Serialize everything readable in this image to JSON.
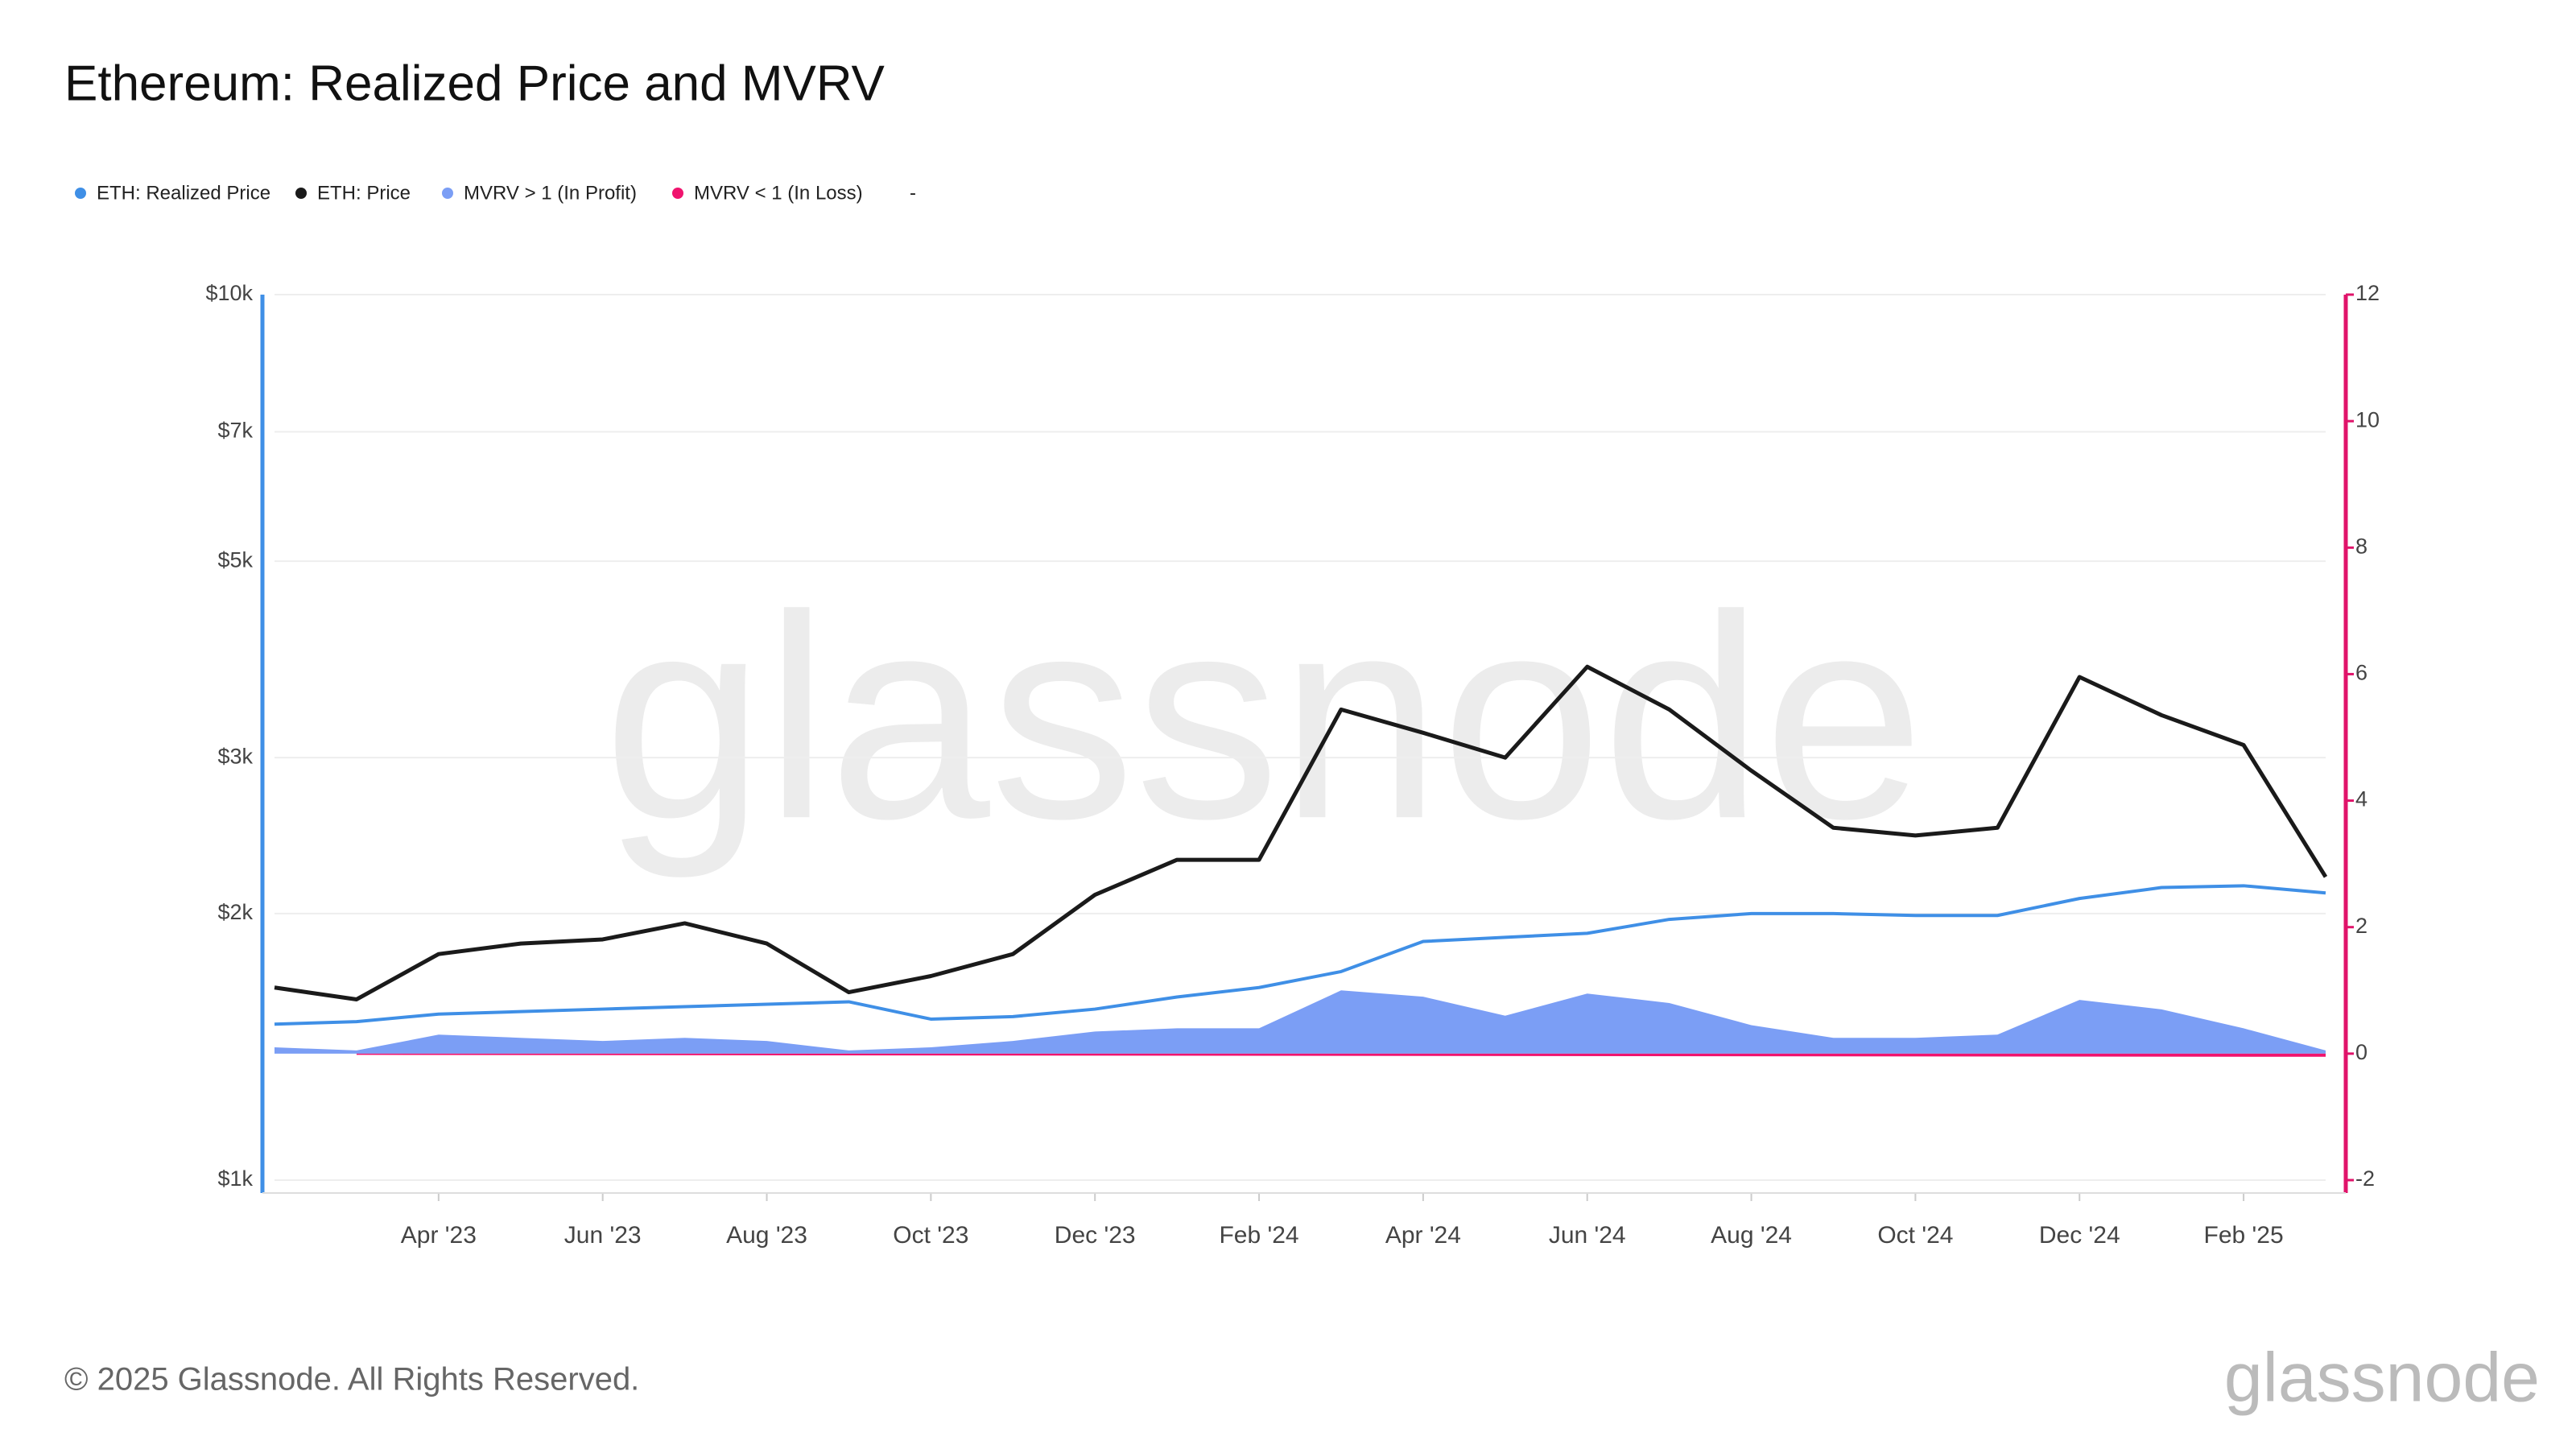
{
  "title": "Ethereum: Realized Price and MVRV",
  "chart_data": {
    "type": "line",
    "log_scale_y": true,
    "grid": true,
    "x": [
      "2023-02",
      "2023-03",
      "2023-04",
      "2023-05",
      "2023-06",
      "2023-07",
      "2023-08",
      "2023-09",
      "2023-10",
      "2023-11",
      "2023-12",
      "2024-01",
      "2024-02",
      "2024-03",
      "2024-04",
      "2024-05",
      "2024-06",
      "2024-07",
      "2024-08",
      "2024-09",
      "2024-10",
      "2024-11",
      "2024-12",
      "2025-01",
      "2025-02",
      "2025-03"
    ],
    "xlim": [
      "2023-02",
      "2025-03"
    ],
    "xticks": [
      {
        "value": "2023-04",
        "label": "Apr '23"
      },
      {
        "value": "2023-06",
        "label": "Jun '23"
      },
      {
        "value": "2023-08",
        "label": "Aug '23"
      },
      {
        "value": "2023-10",
        "label": "Oct '23"
      },
      {
        "value": "2023-12",
        "label": "Dec '23"
      },
      {
        "value": "2024-02",
        "label": "Feb '24"
      },
      {
        "value": "2024-04",
        "label": "Apr '24"
      },
      {
        "value": "2024-06",
        "label": "Jun '24"
      },
      {
        "value": "2024-08",
        "label": "Aug '24"
      },
      {
        "value": "2024-10",
        "label": "Oct '24"
      },
      {
        "value": "2024-12",
        "label": "Dec '24"
      },
      {
        "value": "2025-02",
        "label": "Feb '25"
      }
    ],
    "ylim": [
      1000,
      10000
    ],
    "yticks": [
      {
        "value": 1000,
        "label": "$1k"
      },
      {
        "value": 2000,
        "label": "$2k"
      },
      {
        "value": 3000,
        "label": "$3k"
      },
      {
        "value": 5000,
        "label": "$5k"
      },
      {
        "value": 7000,
        "label": "$7k"
      },
      {
        "value": 10000,
        "label": "$10k"
      }
    ],
    "y2lim": [
      -2,
      12
    ],
    "y2ticks": [
      -2,
      0,
      2,
      4,
      6,
      8,
      10,
      12
    ],
    "legend_extra_label": "-",
    "series": [
      {
        "name": "MVRV > 1 (In Profit)",
        "color": "#7b9ef5",
        "style": "area",
        "axis": "y2",
        "values": [
          0.1,
          0.05,
          0.3,
          0.25,
          0.2,
          0.25,
          0.2,
          0.05,
          0.1,
          0.2,
          0.35,
          0.4,
          0.4,
          1.0,
          0.9,
          0.6,
          0.95,
          0.8,
          0.45,
          0.25,
          0.25,
          0.3,
          0.85,
          0.7,
          0.4,
          0.05
        ]
      },
      {
        "name": "MVRV < 1 (In Loss)",
        "color": "#f0146e",
        "style": "area",
        "axis": "y2",
        "values": [
          null,
          -0.02,
          null,
          null,
          null,
          null,
          null,
          null,
          null,
          null,
          null,
          null,
          null,
          null,
          null,
          null,
          null,
          null,
          null,
          null,
          null,
          null,
          null,
          null,
          null,
          -0.05
        ]
      },
      {
        "name": "ETH: Realized Price",
        "color": "#3f8fe6",
        "style": "line",
        "values": [
          1500,
          1510,
          1540,
          1550,
          1560,
          1570,
          1580,
          1590,
          1520,
          1530,
          1560,
          1610,
          1650,
          1720,
          1860,
          1880,
          1900,
          1970,
          2000,
          2000,
          1990,
          1990,
          2080,
          2140,
          2150,
          2110
        ]
      },
      {
        "name": "ETH: Price",
        "color": "#1a1a1a",
        "style": "line",
        "values": [
          1650,
          1600,
          1800,
          1850,
          1870,
          1950,
          1850,
          1630,
          1700,
          1800,
          2100,
          2300,
          2300,
          3400,
          3200,
          3000,
          3800,
          3400,
          2900,
          2500,
          2450,
          2500,
          3700,
          3350,
          3100,
          2200
        ]
      }
    ]
  },
  "watermark": "glassnode",
  "footer": {
    "copyright": "© 2025 Glassnode. All Rights Reserved.",
    "brand": "glassnode"
  }
}
